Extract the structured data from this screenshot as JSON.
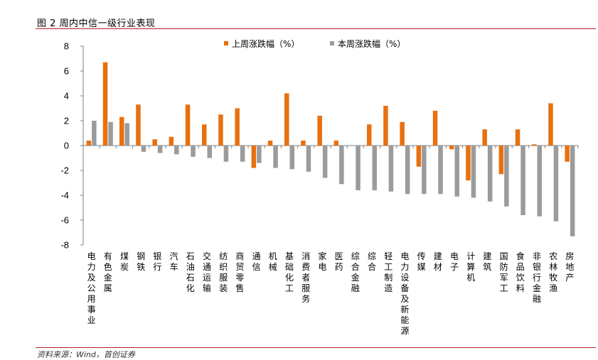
{
  "figure": {
    "title": "图 2 周内中信一级行业表现",
    "source": "资料来源：Wind，首创证券"
  },
  "colors": {
    "last_week": "#e8700f",
    "this_week": "#9b9b9b",
    "rule": "#b3202a"
  },
  "chart_data": {
    "type": "bar",
    "categories": [
      "电力及公用事业",
      "有色金属",
      "煤炭",
      "钢铁",
      "银行",
      "汽车",
      "石油石化",
      "交通运输",
      "纺织服装",
      "商贸零售",
      "通信",
      "机械",
      "基础化工",
      "消费者服务",
      "家电",
      "医药",
      "综合金融",
      "综合",
      "轻工制造",
      "电力设备及新能源",
      "传媒",
      "建材",
      "电子",
      "计算机",
      "建筑",
      "国防军工",
      "食品饮料",
      "非银行金融",
      "农林牧渔",
      "房地产"
    ],
    "series": [
      {
        "name": "上周涨跌幅（%）",
        "values": [
          0.4,
          6.7,
          2.3,
          3.3,
          0.5,
          0.7,
          3.3,
          1.7,
          2.5,
          3.0,
          -1.8,
          0.4,
          4.2,
          0.4,
          2.4,
          0.4,
          0.0,
          1.7,
          3.2,
          1.9,
          -1.7,
          2.8,
          -0.3,
          -2.8,
          1.3,
          -2.3,
          1.3,
          0.1,
          3.4,
          -1.3
        ]
      },
      {
        "name": "本周涨跌幅（%）",
        "values": [
          2.0,
          1.9,
          1.8,
          -0.5,
          -0.6,
          -0.7,
          -0.9,
          -1.0,
          -1.3,
          -1.3,
          -1.4,
          -1.8,
          -1.9,
          -2.1,
          -2.6,
          -3.1,
          -3.6,
          -3.6,
          -3.7,
          -3.9,
          -3.9,
          -3.9,
          -4.1,
          -4.2,
          -4.5,
          -4.9,
          -5.6,
          -5.7,
          -6.1,
          -7.3
        ]
      }
    ],
    "ylim": [
      -8,
      8
    ],
    "yticks": [
      "8",
      "6",
      "4",
      "2",
      "0",
      "-2",
      "-4",
      "-6",
      "-8"
    ],
    "legend_position": "top"
  }
}
